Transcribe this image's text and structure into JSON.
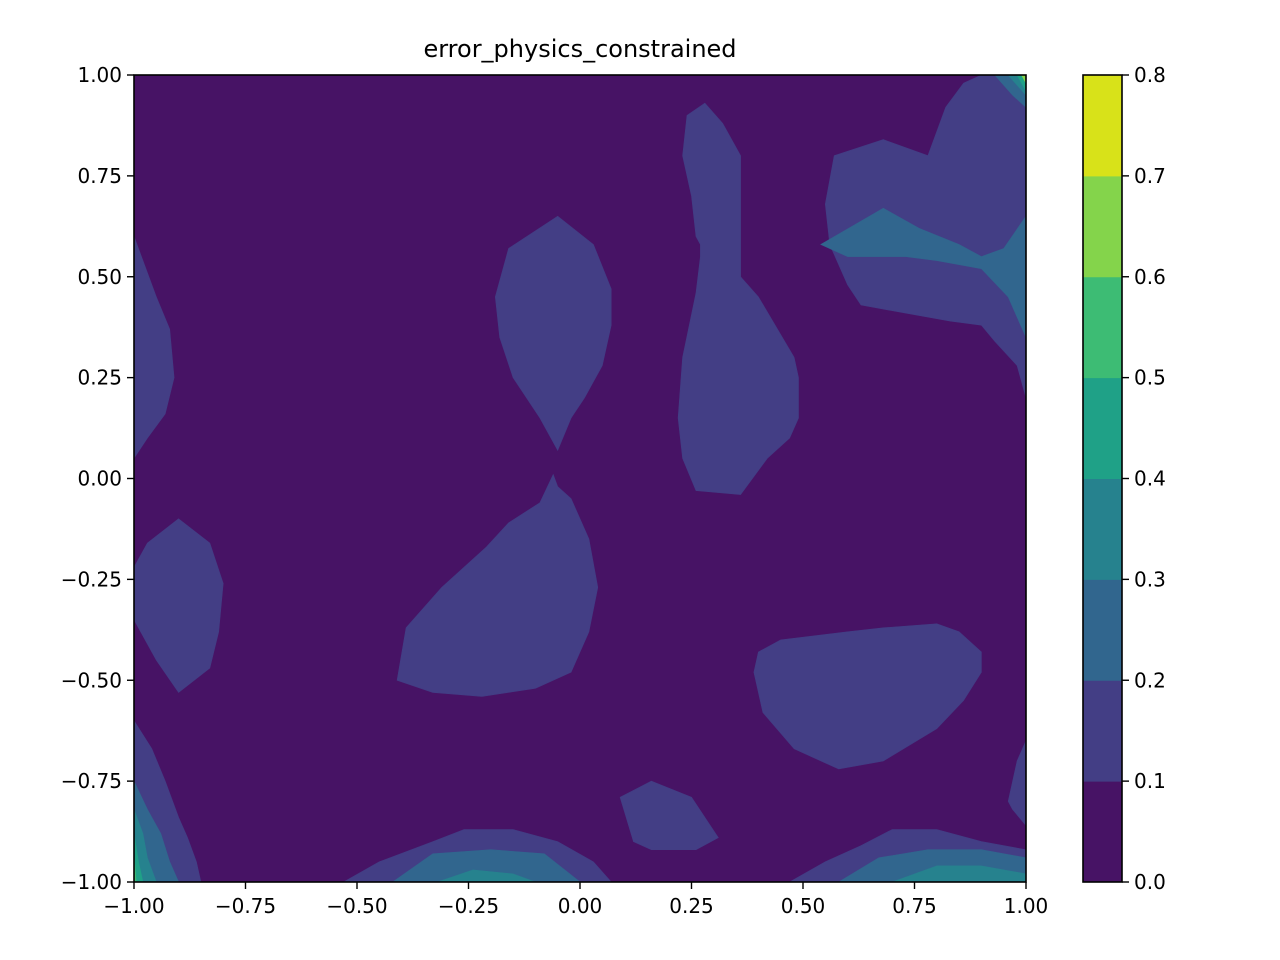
{
  "chart_data": {
    "type": "contour",
    "title": "error_physics_constrained",
    "xlabel": "",
    "ylabel": "",
    "xlim": [
      -1.0,
      1.0
    ],
    "ylim": [
      -1.0,
      1.0
    ],
    "x_ticks": [
      -1.0,
      -0.75,
      -0.5,
      -0.25,
      0.0,
      0.25,
      0.5,
      0.75,
      1.0
    ],
    "x_tick_labels": [
      "−1.00",
      "−0.75",
      "−0.50",
      "−0.25",
      "0.00",
      "0.25",
      "0.50",
      "0.75",
      "1.00"
    ],
    "y_ticks": [
      -1.0,
      -0.75,
      -0.5,
      -0.25,
      0.0,
      0.25,
      0.5,
      0.75,
      1.0
    ],
    "y_tick_labels": [
      "−1.00",
      "−0.75",
      "−0.50",
      "−0.25",
      "0.00",
      "0.25",
      "0.50",
      "0.75",
      "1.00"
    ],
    "colorbar": {
      "levels": [
        0.0,
        0.1,
        0.2,
        0.3,
        0.4,
        0.5,
        0.6,
        0.7,
        0.8
      ],
      "tick_labels": [
        "0.0",
        "0.1",
        "0.2",
        "0.3",
        "0.4",
        "0.5",
        "0.6",
        "0.7",
        "0.8"
      ],
      "colors": [
        "#471365",
        "#433e85",
        "#31668e",
        "#26828e",
        "#1fa187",
        "#3dbc74",
        "#84d44b",
        "#d8e219"
      ]
    },
    "grid": false,
    "regions": [
      {
        "level": 1,
        "points": [
          [
            0.28,
            0.93
          ],
          [
            0.32,
            0.88
          ],
          [
            0.36,
            0.8
          ],
          [
            0.36,
            0.5
          ],
          [
            0.4,
            0.45
          ],
          [
            0.48,
            0.3
          ],
          [
            0.49,
            0.25
          ],
          [
            0.49,
            0.15
          ],
          [
            0.47,
            0.1
          ],
          [
            0.42,
            0.05
          ],
          [
            0.36,
            -0.04
          ],
          [
            0.26,
            -0.03
          ],
          [
            0.23,
            0.05
          ],
          [
            0.22,
            0.15
          ],
          [
            0.23,
            0.3
          ],
          [
            0.26,
            0.46
          ],
          [
            0.27,
            0.55
          ],
          [
            0.27,
            0.58
          ],
          [
            0.26,
            0.6
          ],
          [
            0.25,
            0.7
          ],
          [
            0.23,
            0.8
          ],
          [
            0.24,
            0.9
          ]
        ]
      },
      {
        "level": 1,
        "points": [
          [
            -0.05,
            0.65
          ],
          [
            0.03,
            0.58
          ],
          [
            0.07,
            0.47
          ],
          [
            0.07,
            0.38
          ],
          [
            0.05,
            0.28
          ],
          [
            0.01,
            0.2
          ],
          [
            -0.02,
            0.15
          ],
          [
            -0.05,
            0.07
          ],
          [
            -0.09,
            0.15
          ],
          [
            -0.15,
            0.25
          ],
          [
            -0.18,
            0.35
          ],
          [
            -0.19,
            0.45
          ],
          [
            -0.16,
            0.57
          ]
        ]
      },
      {
        "level": 1,
        "points": [
          [
            -0.05,
            -0.02
          ],
          [
            -0.02,
            -0.05
          ],
          [
            0.02,
            -0.15
          ],
          [
            0.04,
            -0.27
          ],
          [
            0.02,
            -0.38
          ],
          [
            -0.02,
            -0.48
          ],
          [
            -0.1,
            -0.52
          ],
          [
            -0.22,
            -0.54
          ],
          [
            -0.33,
            -0.53
          ],
          [
            -0.41,
            -0.5
          ],
          [
            -0.39,
            -0.37
          ],
          [
            -0.31,
            -0.27
          ],
          [
            -0.21,
            -0.17
          ],
          [
            -0.16,
            -0.11
          ],
          [
            -0.09,
            -0.06
          ],
          [
            -0.06,
            0.01
          ]
        ]
      },
      {
        "level": 1,
        "points": [
          [
            -0.9,
            -0.1
          ],
          [
            -0.83,
            -0.16
          ],
          [
            -0.8,
            -0.26
          ],
          [
            -0.81,
            -0.38
          ],
          [
            -0.83,
            -0.47
          ],
          [
            -0.9,
            -0.53
          ],
          [
            -0.95,
            -0.45
          ],
          [
            -1.0,
            -0.35
          ],
          [
            -1.0,
            -0.22
          ],
          [
            -0.97,
            -0.16
          ]
        ]
      },
      {
        "level": 1,
        "points": [
          [
            -1.0,
            0.6
          ],
          [
            -0.95,
            0.45
          ],
          [
            -0.92,
            0.37
          ],
          [
            -0.91,
            0.25
          ],
          [
            -0.93,
            0.16
          ],
          [
            -0.97,
            0.1
          ],
          [
            -1.0,
            0.05
          ]
        ]
      },
      {
        "level": 1,
        "points": [
          [
            0.4,
            -0.43
          ],
          [
            0.45,
            -0.4
          ],
          [
            0.6,
            -0.38
          ],
          [
            0.68,
            -0.37
          ],
          [
            0.8,
            -0.36
          ],
          [
            0.85,
            -0.38
          ],
          [
            0.9,
            -0.43
          ],
          [
            0.9,
            -0.48
          ],
          [
            0.86,
            -0.55
          ],
          [
            0.8,
            -0.62
          ],
          [
            0.68,
            -0.7
          ],
          [
            0.58,
            -0.72
          ],
          [
            0.48,
            -0.67
          ],
          [
            0.41,
            -0.58
          ],
          [
            0.39,
            -0.48
          ]
        ]
      },
      {
        "level": 1,
        "points": [
          [
            0.16,
            -0.75
          ],
          [
            0.25,
            -0.79
          ],
          [
            0.31,
            -0.89
          ],
          [
            0.26,
            -0.92
          ],
          [
            0.16,
            -0.92
          ],
          [
            0.12,
            -0.9
          ],
          [
            0.09,
            -0.79
          ]
        ]
      },
      {
        "level": 1,
        "points": [
          [
            0.57,
            0.8
          ],
          [
            0.68,
            0.84
          ],
          [
            0.78,
            0.8
          ],
          [
            0.8,
            0.86
          ],
          [
            0.82,
            0.92
          ],
          [
            0.86,
            0.98
          ],
          [
            0.9,
            1.0
          ],
          [
            1.0,
            1.0
          ],
          [
            1.0,
            0.2
          ],
          [
            0.98,
            0.28
          ],
          [
            0.93,
            0.34
          ],
          [
            0.9,
            0.38
          ],
          [
            0.83,
            0.39
          ],
          [
            0.73,
            0.41
          ],
          [
            0.63,
            0.43
          ],
          [
            0.6,
            0.48
          ],
          [
            0.56,
            0.58
          ],
          [
            0.55,
            0.68
          ]
        ]
      },
      {
        "level": 1,
        "points": [
          [
            1.0,
            -0.65
          ],
          [
            0.98,
            -0.7
          ],
          [
            0.96,
            -0.8
          ],
          [
            0.97,
            -0.82
          ],
          [
            1.0,
            -0.86
          ]
        ]
      },
      {
        "level": 1,
        "points": [
          [
            -1.0,
            -0.6
          ],
          [
            -0.96,
            -0.67
          ],
          [
            -0.93,
            -0.75
          ],
          [
            -0.9,
            -0.84
          ],
          [
            -0.88,
            -0.89
          ],
          [
            -0.86,
            -0.95
          ],
          [
            -0.85,
            -1.0
          ],
          [
            -1.0,
            -1.0
          ]
        ]
      },
      {
        "level": 1,
        "points": [
          [
            -0.53,
            -1.0
          ],
          [
            -0.45,
            -0.95
          ],
          [
            -0.33,
            -0.9
          ],
          [
            -0.26,
            -0.87
          ],
          [
            -0.15,
            -0.87
          ],
          [
            -0.05,
            -0.9
          ],
          [
            0.03,
            -0.95
          ],
          [
            0.07,
            -1.0
          ]
        ]
      },
      {
        "level": 1,
        "points": [
          [
            0.47,
            -1.0
          ],
          [
            0.55,
            -0.95
          ],
          [
            0.63,
            -0.91
          ],
          [
            0.7,
            -0.87
          ],
          [
            0.8,
            -0.87
          ],
          [
            0.9,
            -0.9
          ],
          [
            1.0,
            -0.92
          ],
          [
            1.0,
            -1.0
          ]
        ]
      },
      {
        "level": 0,
        "points": [
          [
            0.8,
            0.8
          ],
          [
            0.9,
            0.82
          ],
          [
            1.0,
            0.83
          ],
          [
            1.0,
            0.77
          ],
          [
            0.9,
            0.75
          ],
          [
            0.82,
            0.76
          ]
        ]
      },
      {
        "level": 2,
        "points": [
          [
            0.68,
            0.67
          ],
          [
            0.76,
            0.62
          ],
          [
            0.85,
            0.58
          ],
          [
            0.9,
            0.55
          ],
          [
            0.95,
            0.57
          ],
          [
            1.0,
            0.65
          ],
          [
            1.0,
            0.35
          ],
          [
            0.96,
            0.45
          ],
          [
            0.9,
            0.52
          ],
          [
            0.8,
            0.54
          ],
          [
            0.73,
            0.55
          ],
          [
            0.6,
            0.55
          ],
          [
            0.54,
            0.58
          ]
        ]
      },
      {
        "level": 2,
        "points": [
          [
            0.93,
            1.0
          ],
          [
            1.0,
            1.0
          ],
          [
            1.0,
            0.92
          ],
          [
            0.97,
            0.95
          ]
        ]
      },
      {
        "level": 2,
        "points": [
          [
            -0.42,
            -1.0
          ],
          [
            -0.33,
            -0.93
          ],
          [
            -0.2,
            -0.92
          ],
          [
            -0.08,
            -0.93
          ],
          [
            0.0,
            -1.0
          ]
        ]
      },
      {
        "level": 2,
        "points": [
          [
            0.58,
            -1.0
          ],
          [
            0.67,
            -0.94
          ],
          [
            0.78,
            -0.92
          ],
          [
            0.9,
            -0.92
          ],
          [
            1.0,
            -0.94
          ],
          [
            1.0,
            -1.0
          ]
        ]
      },
      {
        "level": 2,
        "points": [
          [
            -1.0,
            -0.75
          ],
          [
            -0.97,
            -0.82
          ],
          [
            -0.94,
            -0.88
          ],
          [
            -0.92,
            -0.95
          ],
          [
            -0.9,
            -1.0
          ],
          [
            -1.0,
            -1.0
          ]
        ]
      },
      {
        "level": 3,
        "points": [
          [
            0.96,
            1.0
          ],
          [
            1.0,
            1.0
          ],
          [
            1.0,
            0.95
          ]
        ]
      },
      {
        "level": 3,
        "points": [
          [
            -0.32,
            -1.0
          ],
          [
            -0.24,
            -0.97
          ],
          [
            -0.15,
            -0.98
          ],
          [
            -0.1,
            -1.0
          ]
        ]
      },
      {
        "level": 3,
        "points": [
          [
            0.7,
            -1.0
          ],
          [
            0.8,
            -0.96
          ],
          [
            0.9,
            -0.96
          ],
          [
            1.0,
            -0.98
          ],
          [
            1.0,
            -1.0
          ]
        ]
      },
      {
        "level": 3,
        "points": [
          [
            -1.0,
            -0.82
          ],
          [
            -0.98,
            -0.88
          ],
          [
            -0.97,
            -0.94
          ],
          [
            -0.95,
            -1.0
          ],
          [
            -1.0,
            -1.0
          ]
        ]
      },
      {
        "level": 4,
        "points": [
          [
            0.98,
            1.0
          ],
          [
            1.0,
            1.0
          ],
          [
            1.0,
            0.96
          ]
        ]
      },
      {
        "level": 4,
        "points": [
          [
            -1.0,
            -0.88
          ],
          [
            -0.99,
            -0.95
          ],
          [
            -0.98,
            -1.0
          ],
          [
            -1.0,
            -1.0
          ]
        ]
      },
      {
        "level": 5,
        "points": [
          [
            -1.0,
            -0.93
          ],
          [
            -0.995,
            -1.0
          ],
          [
            -1.0,
            -1.0
          ]
        ]
      },
      {
        "level": 6,
        "points": [
          [
            0.99,
            1.0
          ],
          [
            1.0,
            1.0
          ],
          [
            1.0,
            0.98
          ]
        ]
      }
    ]
  }
}
